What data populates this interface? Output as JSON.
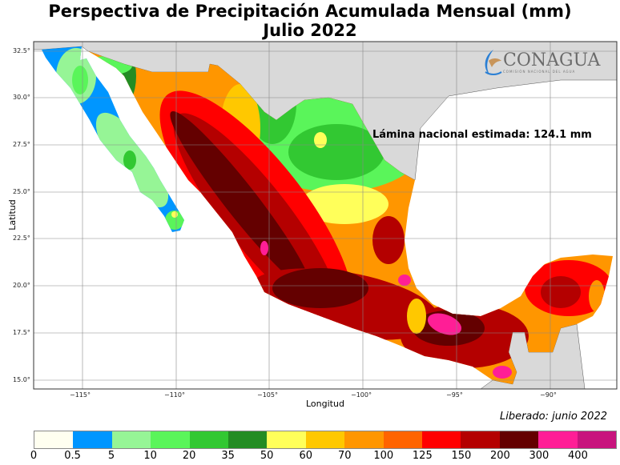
{
  "title": {
    "line1": "Perspectiva de Precipitación Acumulada Mensual (mm)",
    "line2": "Julio 2022"
  },
  "axes": {
    "xlabel": "Longitud",
    "ylabel": "Latitud",
    "xticks": [
      "−115°",
      "−110°",
      "−105°",
      "−100°",
      "−95°",
      "−90°"
    ],
    "yticks": [
      "32.5°",
      "30.0°",
      "27.5°",
      "25.0°",
      "22.5°",
      "20.0°",
      "17.5°",
      "15.0°"
    ]
  },
  "annotation": "Lámina nacional estimada: 124.1 mm",
  "released": "Liberado: junio 2022",
  "logo": {
    "name": "CONAGUA",
    "subtitle": "COMISIÓN NACIONAL DEL AGUA"
  },
  "colorbar": {
    "labels": [
      "0",
      "0.5",
      "5",
      "10",
      "20",
      "35",
      "50",
      "60",
      "70",
      "100",
      "125",
      "150",
      "200",
      "300",
      "400"
    ],
    "colors": [
      "#fffff0",
      "#0096ff",
      "#96f596",
      "#5af55a",
      "#32c832",
      "#238c23",
      "#ffff5a",
      "#ffc800",
      "#ff9600",
      "#ff6400",
      "#ff0000",
      "#b40000",
      "#640000",
      "#ff1e96",
      "#c8147d"
    ]
  }
}
